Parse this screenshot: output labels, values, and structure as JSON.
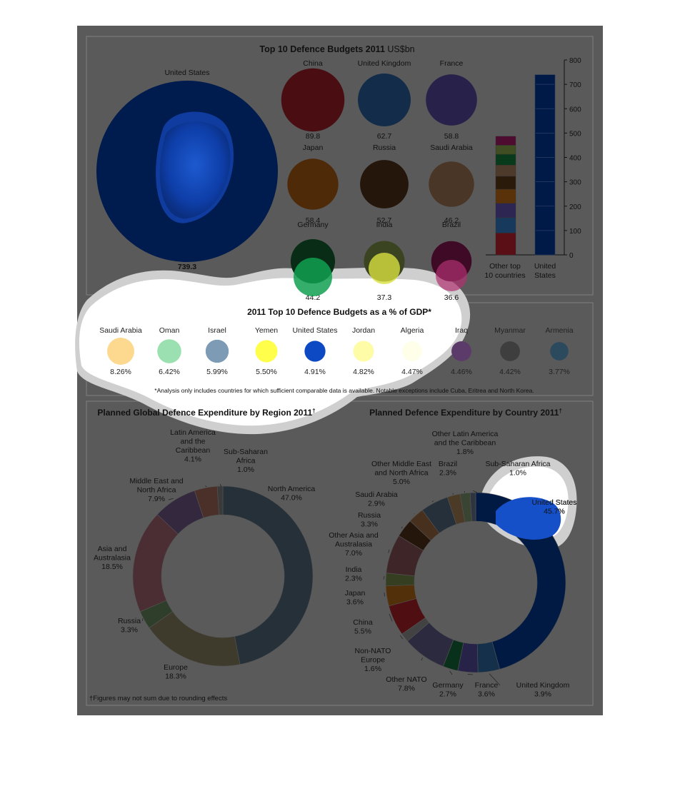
{
  "colors": {
    "page_bg": "#ffffff",
    "infographic_bg": "#5a5a5a",
    "panel_border": "#777777",
    "text": "#111111",
    "dim_overlay": "#5a5a5a",
    "halo": "#c8c8c8"
  },
  "chart_data": [
    {
      "type": "bubble",
      "title": "Top 10 Defence Budgets 2011",
      "unit": "US$bn",
      "items": [
        {
          "name": "United States",
          "value": 739.3,
          "label": "739.3",
          "color": "#001b4d"
        },
        {
          "name": "China",
          "value": 89.8,
          "label": "89.8",
          "color": "#4a0e12"
        },
        {
          "name": "United Kingdom",
          "value": 62.7,
          "label": "62.7",
          "color": "#122c4a"
        },
        {
          "name": "France",
          "value": 58.8,
          "label": "58.8",
          "color": "#28224a"
        },
        {
          "name": "Japan",
          "value": 58.4,
          "label": "58.4",
          "color": "#4e2a08"
        },
        {
          "name": "Russia",
          "value": 52.7,
          "label": "52.7",
          "color": "#24160a"
        },
        {
          "name": "Saudi Arabia",
          "value": 46.2,
          "label": "46.2",
          "color": "#4a3626"
        },
        {
          "name": "Germany",
          "value": 44.2,
          "label": "44.2",
          "color": "#082c16"
        },
        {
          "name": "India",
          "value": 37.3,
          "label": "37.3",
          "color": "#3a4420"
        },
        {
          "name": "Brazil",
          "value": 36.6,
          "label": "36.6",
          "color": "#3e0a26"
        }
      ]
    },
    {
      "type": "bar",
      "categories": [
        "Other top 10 countries",
        "United States"
      ],
      "category_labels": [
        [
          "Other top",
          "10 countries"
        ],
        [
          "United",
          "States"
        ]
      ],
      "stacked_other": [
        {
          "name": "China",
          "value": 89.8,
          "color": "#5a0e16"
        },
        {
          "name": "United Kingdom",
          "value": 62.7,
          "color": "#173a5c"
        },
        {
          "name": "France",
          "value": 58.8,
          "color": "#2e2652"
        },
        {
          "name": "Japan",
          "value": 58.4,
          "color": "#5a3209"
        },
        {
          "name": "Russia",
          "value": 52.7,
          "color": "#2a1a0a"
        },
        {
          "name": "Saudi Arabia",
          "value": 46.2,
          "color": "#4e3a2a"
        },
        {
          "name": "Germany",
          "value": 44.2,
          "color": "#0a3a1c"
        },
        {
          "name": "India",
          "value": 37.3,
          "color": "#404c22"
        },
        {
          "name": "Brazil",
          "value": 36.6,
          "color": "#4e0c30"
        }
      ],
      "us_value": 739.3,
      "us_color": "#001a48",
      "ylim": [
        0,
        800
      ],
      "yticks": [
        0,
        100,
        200,
        300,
        400,
        500,
        600,
        700,
        800
      ],
      "grid": false
    },
    {
      "type": "dot",
      "title": "2011 Top 10 Defence Budgets as a % of GDP*",
      "items": [
        {
          "name": "Saudi Arabia",
          "value": 8.26,
          "label": "8.26%",
          "color": "#fdd98f"
        },
        {
          "name": "Oman",
          "value": 6.42,
          "label": "6.42%",
          "color": "#9be0b0"
        },
        {
          "name": "Israel",
          "value": 5.99,
          "label": "5.99%",
          "color": "#7d9bb5"
        },
        {
          "name": "Yemen",
          "value": 5.5,
          "label": "5.50%",
          "color": "#fffe4a"
        },
        {
          "name": "United States",
          "value": 4.91,
          "label": "4.91%",
          "color": "#0c49c3"
        },
        {
          "name": "Jordan",
          "value": 4.82,
          "label": "4.82%",
          "color": "#fefca6"
        },
        {
          "name": "Algeria",
          "value": 4.47,
          "label": "4.47%",
          "color": "#fffee8"
        },
        {
          "name": "Iraq",
          "value": 4.46,
          "label": "4.46%",
          "color": "#5c3a6a"
        },
        {
          "name": "Myanmar",
          "value": 4.42,
          "label": "4.42%",
          "color": "#3e3e3e"
        },
        {
          "name": "Armenia",
          "value": 3.77,
          "label": "3.77%",
          "color": "#2c4a5e"
        }
      ],
      "note": "*Analysis only includes countries for which sufficient comparable data is available. Notable exceptions include Cuba, Eritrea and North Korea."
    },
    {
      "type": "pie",
      "donut": true,
      "title": "Planned Global Defence Expenditure by Region 2011",
      "title_mark": "†",
      "slices": [
        {
          "name": "North America",
          "label_lines": [
            "North America",
            "47.0%"
          ],
          "value": 47.0,
          "color": "#263038"
        },
        {
          "name": "Europe",
          "label_lines": [
            "Europe",
            "18.3%"
          ],
          "value": 18.3,
          "color": "#3e3a2c"
        },
        {
          "name": "Russia",
          "label_lines": [
            "Russia",
            "3.3%"
          ],
          "value": 3.3,
          "color": "#2e3e2a"
        },
        {
          "name": "Asia and Australasia",
          "label_lines": [
            "Asia and",
            "Australasia",
            "18.5%"
          ],
          "value": 18.5,
          "color": "#4a2e34"
        },
        {
          "name": "Middle East and North Africa",
          "label_lines": [
            "Middle East and",
            "North Africa",
            "7.9%"
          ],
          "value": 7.9,
          "color": "#34283e"
        },
        {
          "name": "Latin America and the Caribbean",
          "label_lines": [
            "Latin America",
            "and the",
            "Caribbean",
            "4.1%"
          ],
          "value": 4.1,
          "color": "#4a3028"
        },
        {
          "name": "Sub-Saharan Africa",
          "label_lines": [
            "Sub-Saharan",
            "Africa",
            "1.0%"
          ],
          "value": 1.0,
          "color": "#3a3a3a"
        }
      ],
      "footnote": "†Figures may not sum due to rounding effects"
    },
    {
      "type": "pie",
      "donut": true,
      "title": "Planned Defence Expenditure by Country 2011",
      "title_mark": "†",
      "slices": [
        {
          "name": "United States",
          "label_lines": [
            "United States",
            "45.7%"
          ],
          "value": 45.7,
          "color": "#001a44"
        },
        {
          "name": "United Kingdom",
          "label_lines": [
            "United Kingdom",
            "3.9%"
          ],
          "value": 3.9,
          "color": "#14304a"
        },
        {
          "name": "France",
          "label_lines": [
            "France",
            "3.6%"
          ],
          "value": 3.6,
          "color": "#262248"
        },
        {
          "name": "Germany",
          "label_lines": [
            "Germany",
            "2.7%"
          ],
          "value": 2.7,
          "color": "#08301a"
        },
        {
          "name": "Other NATO",
          "label_lines": [
            "Other NATO",
            "7.8%"
          ],
          "value": 7.8,
          "color": "#2c2a3e"
        },
        {
          "name": "Non-NATO Europe",
          "label_lines": [
            "Non-NATO",
            "Europe",
            "1.6%"
          ],
          "value": 1.6,
          "color": "#424242"
        },
        {
          "name": "China",
          "label_lines": [
            "China",
            "5.5%"
          ],
          "value": 5.5,
          "color": "#4e0e12"
        },
        {
          "name": "Japan",
          "label_lines": [
            "Japan",
            "3.6%"
          ],
          "value": 3.6,
          "color": "#52300a"
        },
        {
          "name": "India",
          "label_lines": [
            "India",
            "2.3%"
          ],
          "value": 2.3,
          "color": "#363e22"
        },
        {
          "name": "Other Asia and Australasia",
          "label_lines": [
            "Other Asia and",
            "Australasia",
            "7.0%"
          ],
          "value": 7.0,
          "color": "#3e2628"
        },
        {
          "name": "Russia",
          "label_lines": [
            "Russia",
            "3.3%"
          ],
          "value": 3.3,
          "color": "#24160a"
        },
        {
          "name": "Saudi Arabia",
          "label_lines": [
            "Saudi Arabia",
            "2.9%"
          ],
          "value": 2.9,
          "color": "#48301e"
        },
        {
          "name": "Other Middle East and North Africa",
          "label_lines": [
            "Other Middle East",
            "and North Africa",
            "5.0%"
          ],
          "value": 5.0,
          "color": "#26303a"
        },
        {
          "name": "Brazil",
          "label_lines": [
            "Brazil",
            "2.3%"
          ],
          "value": 2.3,
          "color": "#4a3a26"
        },
        {
          "name": "Other Latin America and the Caribbean",
          "label_lines": [
            "Other Latin America",
            "and the Caribbean",
            "1.8%"
          ],
          "value": 1.8,
          "color": "#3a4432"
        },
        {
          "name": "Sub-Saharan Africa",
          "label_lines": [
            "Sub-Saharan Africa",
            "1.0%"
          ],
          "value": 1.0,
          "color": "#2e3440"
        }
      ]
    }
  ]
}
